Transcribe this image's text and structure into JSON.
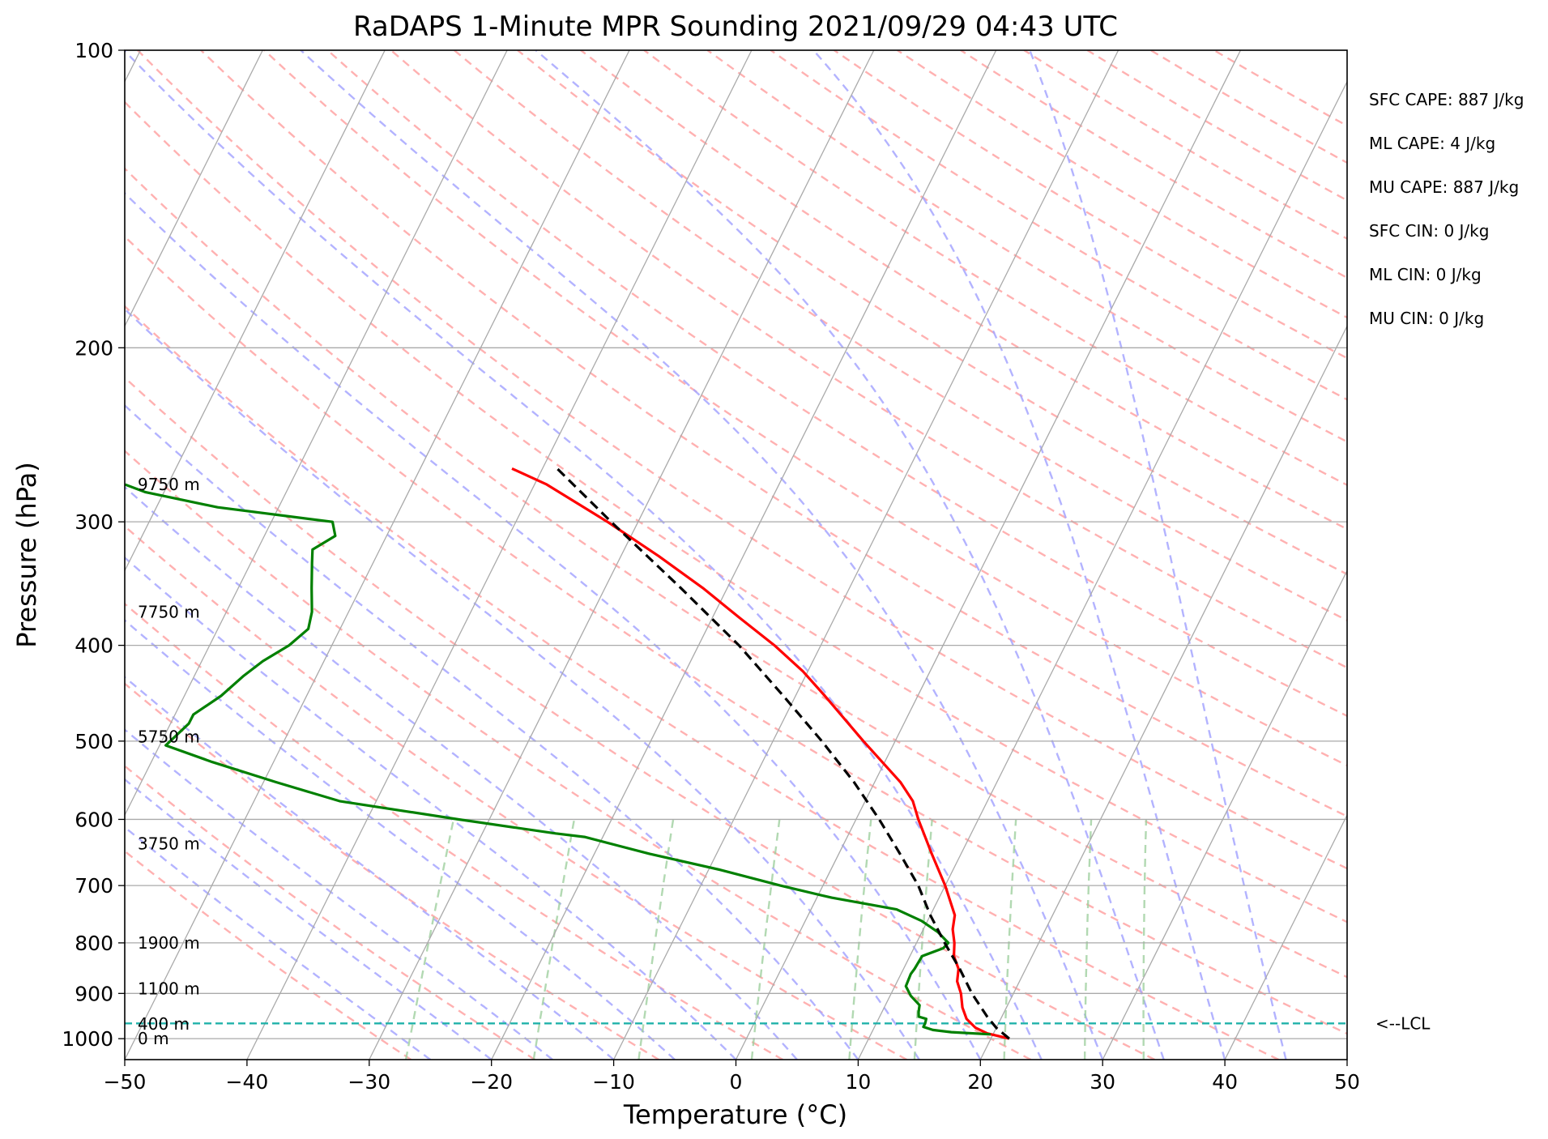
{
  "chart_data": {
    "type": "skew-t log-p sounding",
    "title": "RaDAPS 1-Minute MPR Sounding 2021/09/29 04:43 UTC",
    "xlabel": "Temperature (°C)",
    "ylabel": "Pressure (hPa)",
    "xlim": [
      -50,
      50
    ],
    "ylim_hpa": [
      1050,
      100
    ],
    "x_ticks": [
      -50,
      -40,
      -30,
      -20,
      -10,
      0,
      10,
      20,
      30,
      40,
      50
    ],
    "x_tick_labels": [
      "−50",
      "−40",
      "−30",
      "−20",
      "−10",
      "0",
      "10",
      "20",
      "30",
      "40",
      "50"
    ],
    "y_ticks": [
      100,
      200,
      300,
      400,
      500,
      600,
      700,
      800,
      900,
      1000
    ],
    "y_tick_labels": [
      "100",
      "200",
      "300",
      "400",
      "500",
      "600",
      "700",
      "800",
      "900",
      "1000"
    ],
    "grid": true,
    "background_lines": {
      "isotherms_color": "#aaaaaa",
      "dry_adiabats_color": "#ff9d9d",
      "moist_adiabats_color": "#a6a6ff",
      "mixing_ratio_color": "#9fd09f"
    },
    "series": [
      {
        "kind": "temperature",
        "color": "#ff0000",
        "style": "solid",
        "points": [
          {
            "p": 1000,
            "t": 21.5
          },
          {
            "p": 988,
            "t": 19.5
          },
          {
            "p": 975,
            "t": 18.3
          },
          {
            "p": 955,
            "t": 17.2
          },
          {
            "p": 930,
            "t": 16.4
          },
          {
            "p": 900,
            "t": 15.7
          },
          {
            "p": 875,
            "t": 14.9
          },
          {
            "p": 850,
            "t": 14.5
          },
          {
            "p": 825,
            "t": 13.6
          },
          {
            "p": 800,
            "t": 13.1
          },
          {
            "p": 775,
            "t": 12.4
          },
          {
            "p": 750,
            "t": 12.0
          },
          {
            "p": 700,
            "t": 10.0
          },
          {
            "p": 650,
            "t": 7.6
          },
          {
            "p": 600,
            "t": 5.1
          },
          {
            "p": 575,
            "t": 3.9
          },
          {
            "p": 550,
            "t": 2.1
          },
          {
            "p": 500,
            "t": -2.6
          },
          {
            "p": 450,
            "t": -7.6
          },
          {
            "p": 425,
            "t": -10.4
          },
          {
            "p": 400,
            "t": -13.8
          },
          {
            "p": 375,
            "t": -17.8
          },
          {
            "p": 350,
            "t": -22.0
          },
          {
            "p": 325,
            "t": -26.9
          },
          {
            "p": 300,
            "t": -32.5
          },
          {
            "p": 275,
            "t": -39.0
          },
          {
            "p": 265,
            "t": -42.5
          }
        ]
      },
      {
        "kind": "dewpoint",
        "color": "#008000",
        "style": "solid",
        "points": [
          {
            "p": 990,
            "t": 19.8
          },
          {
            "p": 985,
            "t": 16.5
          },
          {
            "p": 980,
            "t": 14.9
          },
          {
            "p": 973,
            "t": 14.0
          },
          {
            "p": 965,
            "t": 14.0
          },
          {
            "p": 955,
            "t": 13.9
          },
          {
            "p": 950,
            "t": 13.2
          },
          {
            "p": 940,
            "t": 13.0
          },
          {
            "p": 925,
            "t": 12.8
          },
          {
            "p": 905,
            "t": 11.7
          },
          {
            "p": 885,
            "t": 10.9
          },
          {
            "p": 860,
            "t": 10.8
          },
          {
            "p": 850,
            "t": 10.9
          },
          {
            "p": 825,
            "t": 11.0
          },
          {
            "p": 810,
            "t": 12.4
          },
          {
            "p": 800,
            "t": 12.6
          },
          {
            "p": 780,
            "t": 11.3
          },
          {
            "p": 760,
            "t": 9.5
          },
          {
            "p": 740,
            "t": 7.0
          },
          {
            "p": 720,
            "t": 1.2
          },
          {
            "p": 700,
            "t": -3.5
          },
          {
            "p": 675,
            "t": -9.0
          },
          {
            "p": 650,
            "t": -15.5
          },
          {
            "p": 625,
            "t": -21.5
          },
          {
            "p": 620,
            "t": -24.0
          },
          {
            "p": 600,
            "t": -32.5
          },
          {
            "p": 575,
            "t": -43.0
          },
          {
            "p": 550,
            "t": -49.0
          },
          {
            "p": 525,
            "t": -55.0
          },
          {
            "p": 505,
            "t": -59.5
          },
          {
            "p": 500,
            "t": -59.3
          },
          {
            "p": 480,
            "t": -58.5
          },
          {
            "p": 470,
            "t": -58.5
          },
          {
            "p": 450,
            "t": -57.0
          },
          {
            "p": 430,
            "t": -56.0
          },
          {
            "p": 415,
            "t": -55.0
          },
          {
            "p": 400,
            "t": -53.5
          },
          {
            "p": 385,
            "t": -52.6
          },
          {
            "p": 370,
            "t": -53.0
          },
          {
            "p": 350,
            "t": -54.0
          },
          {
            "p": 330,
            "t": -55.0
          },
          {
            "p": 320,
            "t": -55.5
          },
          {
            "p": 310,
            "t": -54.2
          },
          {
            "p": 300,
            "t": -55.0
          },
          {
            "p": 290,
            "t": -65.0
          },
          {
            "p": 280,
            "t": -71.5
          },
          {
            "p": 275,
            "t": -73.5
          }
        ]
      },
      {
        "kind": "parcel profile",
        "color": "#000000",
        "style": "dashed",
        "points": [
          {
            "p": 1000,
            "t": 21.5
          },
          {
            "p": 975,
            "t": 20.0
          },
          {
            "p": 950,
            "t": 18.8
          },
          {
            "p": 900,
            "t": 16.6
          },
          {
            "p": 850,
            "t": 14.6
          },
          {
            "p": 800,
            "t": 12.3
          },
          {
            "p": 750,
            "t": 10.0
          },
          {
            "p": 700,
            "t": 7.8
          },
          {
            "p": 650,
            "t": 5.0
          },
          {
            "p": 600,
            "t": 1.9
          },
          {
            "p": 550,
            "t": -1.7
          },
          {
            "p": 500,
            "t": -6.0
          },
          {
            "p": 450,
            "t": -11.0
          },
          {
            "p": 400,
            "t": -16.7
          },
          {
            "p": 350,
            "t": -23.8
          },
          {
            "p": 300,
            "t": -32.2
          },
          {
            "p": 265,
            "t": -38.8
          }
        ]
      }
    ],
    "lcl": {
      "p": 965,
      "label": "<--LCL",
      "color": "#20b2aa"
    },
    "height_labels": [
      {
        "p": 1000,
        "text": "0 m"
      },
      {
        "p": 966,
        "text": "400 m"
      },
      {
        "p": 890,
        "text": "1100 m"
      },
      {
        "p": 800,
        "text": "1900 m"
      },
      {
        "p": 635,
        "text": "3750 m"
      },
      {
        "p": 495,
        "text": "5750 m"
      },
      {
        "p": 370,
        "text": "7750 m"
      },
      {
        "p": 275,
        "text": "9750 m"
      }
    ],
    "indices": [
      "SFC CAPE: 887 J/kg",
      "ML CAPE: 4 J/kg",
      "MU CAPE: 887 J/kg",
      "SFC CIN: 0 J/kg",
      "ML CIN: 0 J/kg",
      "MU CIN: 0 J/kg"
    ]
  }
}
